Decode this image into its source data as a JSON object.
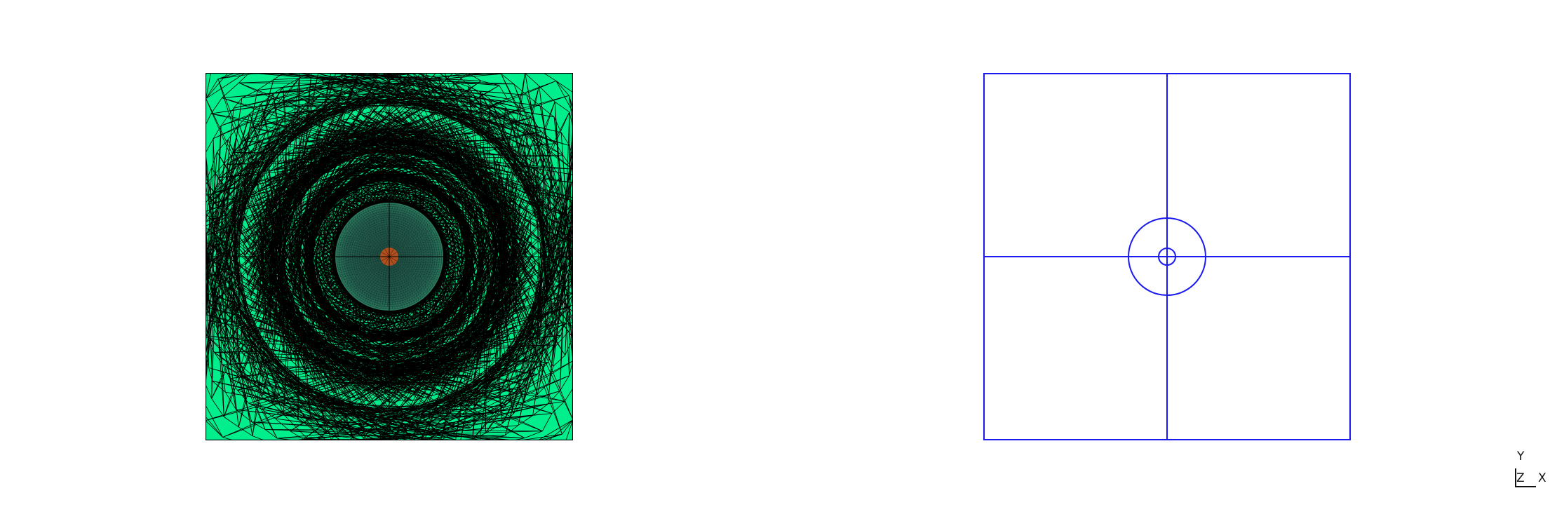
{
  "mesh_view": {
    "outer_fill_color": "#00ee8c",
    "inner_disc_color": "#1c5e4c",
    "core_color": "#b0501e",
    "edge_color": "#000000",
    "symmetry_lines": true
  },
  "geometry_view": {
    "edge_color": "#1a1aee",
    "outer_square": true,
    "cross_lines": true,
    "circles": 2
  },
  "axis_triad": {
    "y": "Y",
    "z": "Z",
    "x": "X"
  }
}
